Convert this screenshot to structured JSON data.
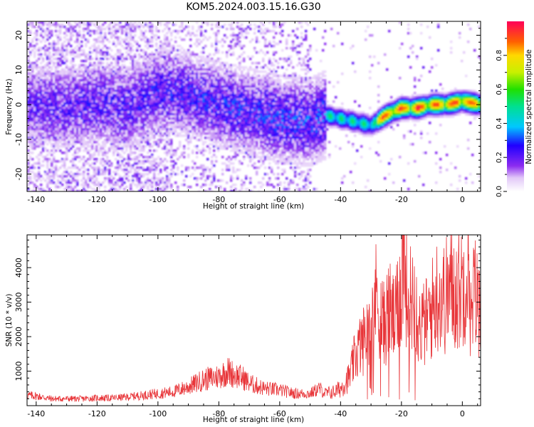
{
  "title": "KOM5.2024.003.15.16.G30",
  "chart_data": [
    {
      "type": "heatmap",
      "xlabel": "Height of straight line (km)",
      "ylabel": "Frequency (Hz)",
      "xlim": [
        -143,
        6
      ],
      "ylim": [
        -25,
        24
      ],
      "xticks": [
        -140,
        -120,
        -100,
        -80,
        -60,
        -40,
        -20,
        0
      ],
      "yticks": [
        -20,
        -10,
        0,
        10,
        20
      ],
      "colorbar": {
        "label": "Normalized spectral amplitude",
        "ticks": [
          0.0,
          0.2,
          0.4,
          0.6,
          0.8
        ],
        "range": [
          0,
          1
        ]
      },
      "ridge_frequency": {
        "x": [
          -143,
          -130,
          -120,
          -110,
          -100,
          -90,
          -80,
          -70,
          -60,
          -50,
          -45,
          -40,
          -35,
          -30,
          -25,
          -20,
          -15,
          -10,
          -5,
          0,
          6
        ],
        "y": [
          0,
          -1,
          0,
          -1,
          4,
          3,
          0,
          -2,
          -4,
          -5,
          -3,
          -4,
          -5,
          -6,
          -3,
          -1,
          -1,
          0,
          0,
          1,
          0
        ]
      }
    },
    {
      "type": "line",
      "xlabel": "Height of straight line (km)",
      "ylabel": "SNR (10 * v/v)",
      "xlim": [
        -143,
        6
      ],
      "ylim": [
        0,
        4950
      ],
      "xticks": [
        -140,
        -120,
        -100,
        -80,
        -60,
        -40,
        -20,
        0
      ],
      "yticks": [
        1000,
        2000,
        3000,
        4000
      ],
      "color": "#e8363a",
      "series": [
        {
          "x": [
            -143,
            -140,
            -135,
            -130,
            -125,
            -120,
            -115,
            -110,
            -105,
            -100,
            -95,
            -90,
            -85,
            -80,
            -77,
            -75,
            -72,
            -70,
            -65,
            -60,
            -55,
            -50,
            -47,
            -45,
            -42,
            -40,
            -37,
            -35,
            -32,
            -30,
            -28,
            -26,
            -24,
            -22,
            -20,
            -19,
            -18,
            -16,
            -14,
            -12,
            -10,
            -8,
            -6,
            -4,
            -2,
            0,
            1,
            2,
            3,
            4,
            5,
            6
          ],
          "y": [
            300,
            280,
            200,
            200,
            200,
            220,
            220,
            250,
            300,
            350,
            400,
            550,
            750,
            850,
            1000,
            900,
            800,
            650,
            500,
            450,
            350,
            350,
            500,
            350,
            400,
            500,
            850,
            1500,
            2000,
            2800,
            3200,
            2300,
            2800,
            2400,
            3600,
            4500,
            2900,
            3300,
            2300,
            2400,
            2800,
            3300,
            3100,
            3400,
            3300,
            3500,
            3900,
            4300,
            2200,
            3500,
            2900,
            3200
          ]
        }
      ]
    }
  ]
}
